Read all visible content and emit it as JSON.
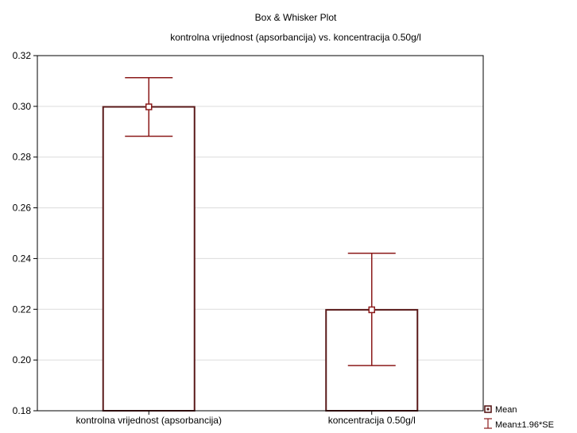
{
  "chart_data": {
    "type": "bar",
    "title": "Box & Whisker Plot",
    "subtitle": "kontrolna vrijednost (apsorbancija) vs. koncentracija 0.50g/l",
    "categories": [
      "kontrolna vrijednost (apsorbancija)",
      "koncentracija 0.50g/l"
    ],
    "series": [
      {
        "name": "Mean",
        "values": [
          0.2998,
          0.2198
        ]
      },
      {
        "name": "Mean±1.96*SE",
        "lower": [
          0.2882,
          0.1978
        ],
        "upper": [
          0.3113,
          0.2421
        ]
      }
    ],
    "ylim": [
      0.18,
      0.32
    ],
    "yticks": [
      "0.18",
      "0.20",
      "0.22",
      "0.24",
      "0.26",
      "0.28",
      "0.30",
      "0.32"
    ],
    "xlabel": "",
    "ylabel": "",
    "grid": true,
    "legend_position": "bottom-right",
    "colors": {
      "bar": "#5a1a1a",
      "whisker": "#8b1a1a",
      "grid": "#dcdcdc"
    }
  }
}
